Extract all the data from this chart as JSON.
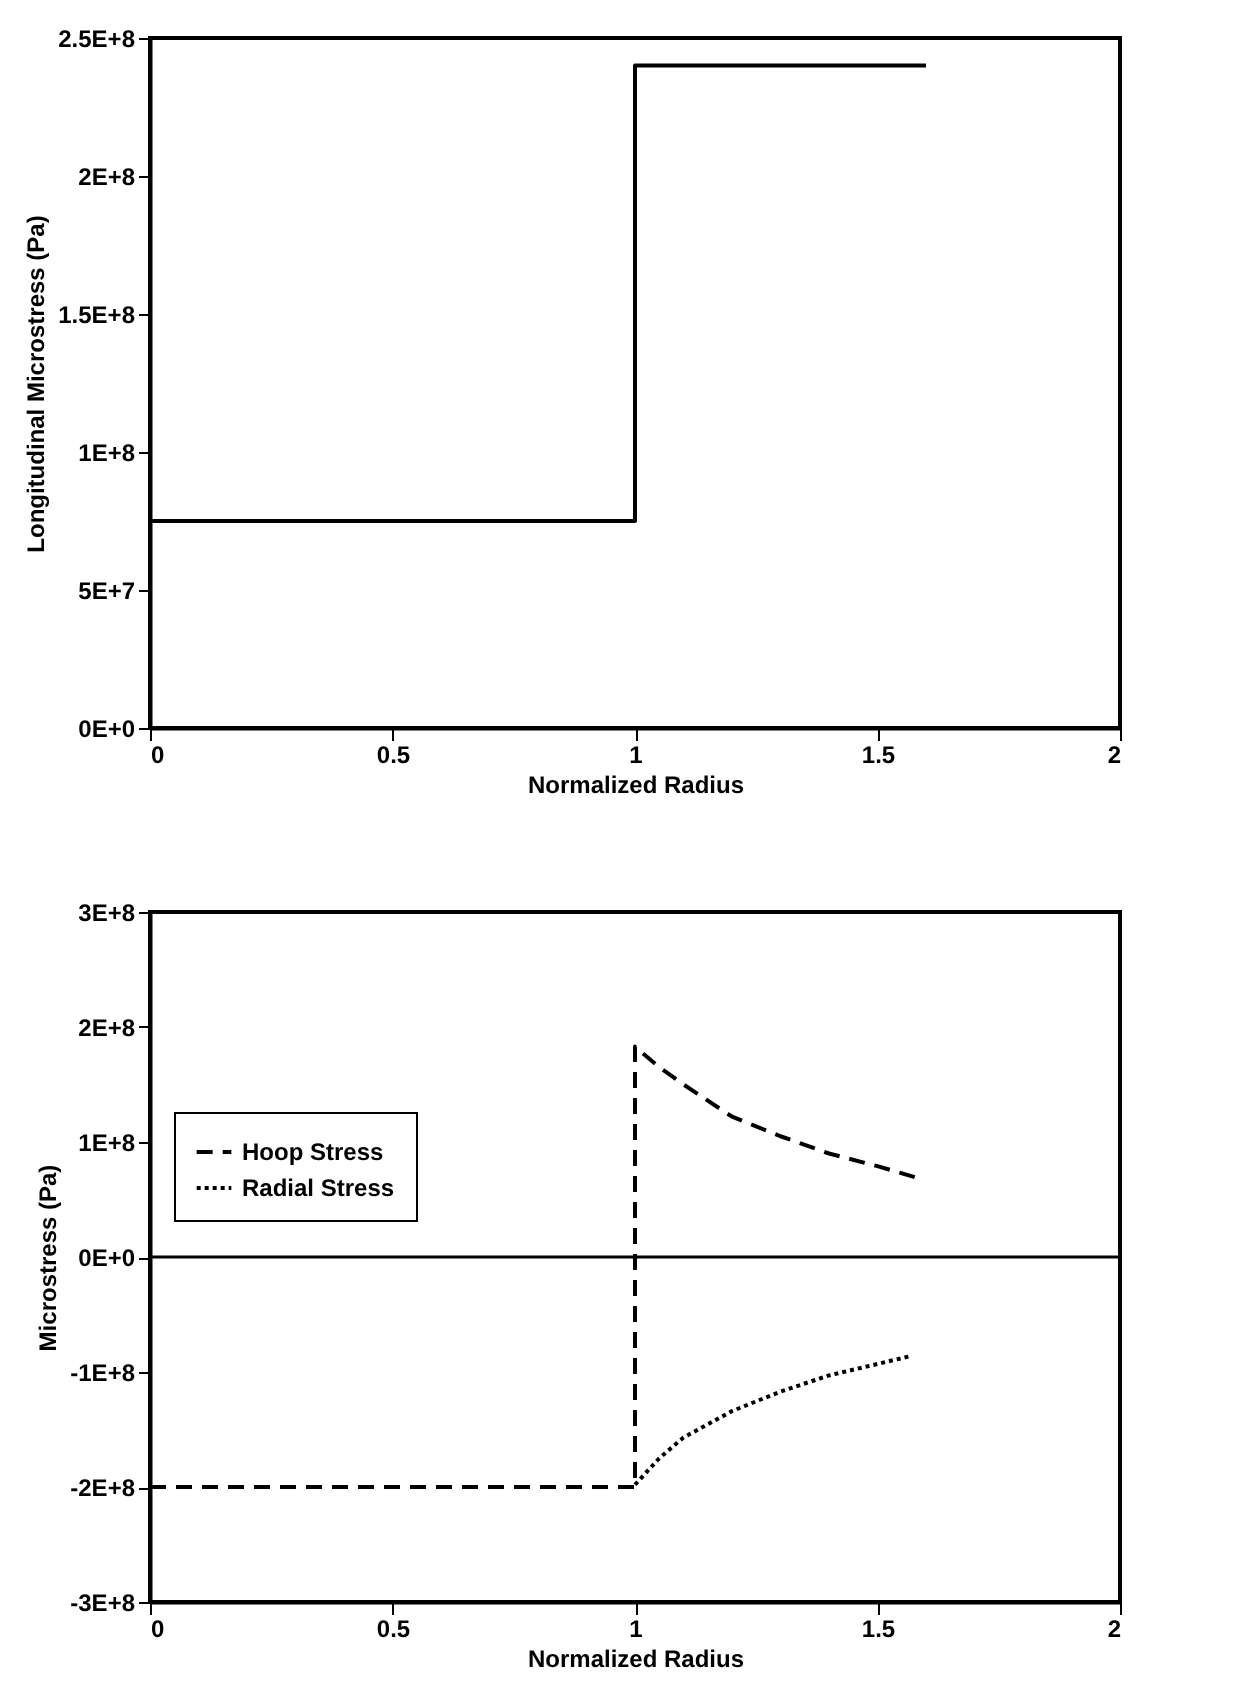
{
  "chart_data": [
    {
      "type": "line",
      "xlabel": "Normalized Radius",
      "ylabel": "Longitudinal Microstress  (Pa)",
      "x": [
        0,
        1,
        1,
        1.6
      ],
      "values": [
        75000000,
        75000000,
        240000000,
        240000000
      ],
      "color": "#000000",
      "line_style": "solid",
      "xlim": [
        0,
        2
      ],
      "xticks": [
        0,
        0.5,
        1,
        1.5,
        2
      ],
      "ylim": [
        0,
        250000000
      ],
      "yticks": [
        {
          "value": 0,
          "label": "0E+0"
        },
        {
          "value": 50000000,
          "label": "5E+7"
        },
        {
          "value": 100000000,
          "label": "1E+8"
        },
        {
          "value": 150000000,
          "label": "1.5E+8"
        },
        {
          "value": 200000000,
          "label": "2E+8"
        },
        {
          "value": 250000000,
          "label": "2.5E+8"
        }
      ],
      "legend": false
    },
    {
      "type": "line",
      "xlabel": "Normalized Radius",
      "ylabel": "Microstress  (Pa)",
      "series": [
        {
          "name": "Hoop Stress",
          "color": "#000000",
          "line_style": "dashed",
          "x": [
            0,
            1,
            1,
            1.05,
            1.1,
            1.2,
            1.3,
            1.4,
            1.5,
            1.58
          ],
          "values": [
            -200000000,
            -200000000,
            183000000,
            165000000,
            150000000,
            122000000,
            105000000,
            90000000,
            79000000,
            69000000
          ]
        },
        {
          "name": "Radial Stress",
          "color": "#000000",
          "line_style": "dotted",
          "x": [
            1,
            1.05,
            1.1,
            1.2,
            1.3,
            1.4,
            1.5,
            1.57
          ],
          "values": [
            -198000000,
            -175000000,
            -157000000,
            -134000000,
            -117000000,
            -103000000,
            -93000000,
            -86000000
          ]
        }
      ],
      "xlim": [
        0,
        2
      ],
      "xticks": [
        0,
        0.5,
        1,
        1.5,
        2
      ],
      "ylim": [
        -300000000,
        300000000
      ],
      "yticks": [
        {
          "value": -300000000,
          "label": "-3E+8"
        },
        {
          "value": -200000000,
          "label": "-2E+8"
        },
        {
          "value": -100000000,
          "label": "-1E+8"
        },
        {
          "value": 0,
          "label": "0E+0"
        },
        {
          "value": 100000000,
          "label": "1E+8"
        },
        {
          "value": 200000000,
          "label": "2E+8"
        },
        {
          "value": 300000000,
          "label": "3E+8"
        }
      ],
      "ref_lines": [
        {
          "axis": "y",
          "value": 0,
          "color": "#000000"
        }
      ],
      "legend": "left"
    }
  ]
}
